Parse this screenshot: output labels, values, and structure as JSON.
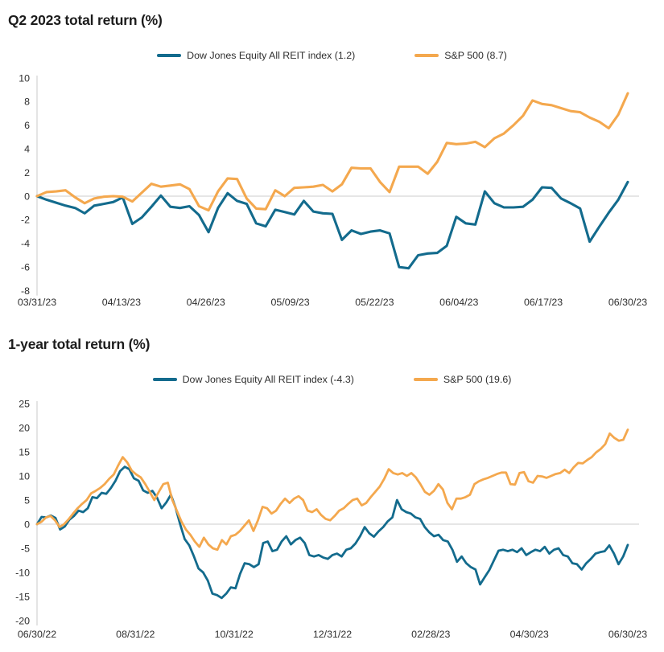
{
  "page": {
    "background": "#ffffff"
  },
  "colors": {
    "reit_line": "#136b8d",
    "sp500_line": "#f4a84e",
    "axis_line": "#c9c9c9",
    "zero_line": "#cccccc",
    "title_text": "#1c1c1c",
    "tick_text": "#2e2e2e"
  },
  "chart_data": [
    {
      "type": "line",
      "title": "Q2 2023 total return (%)",
      "xlabel": "",
      "ylabel": "",
      "legend_position": "top center",
      "grid": "zero line only",
      "y_axis": {
        "min": -8,
        "max": 10,
        "step": 2
      },
      "x_tick_labels": [
        "03/31/23",
        "04/13/23",
        "04/26/23",
        "05/09/23",
        "05/22/23",
        "06/04/23",
        "06/17/23",
        "06/30/23"
      ],
      "series": [
        {
          "name": "Dow Jones Equity All REIT index (1.2)",
          "color_key": "reit_line",
          "final_value": 1.2,
          "values": [
            0,
            -0.3,
            -0.55,
            -0.8,
            -1.0,
            -1.45,
            -0.8,
            -0.65,
            -0.5,
            -0.1,
            -2.35,
            -1.8,
            -0.9,
            0.05,
            -0.9,
            -1.0,
            -0.85,
            -1.6,
            -3.05,
            -1.0,
            0.25,
            -0.4,
            -0.65,
            -2.3,
            -2.55,
            -1.15,
            -1.35,
            -1.55,
            -0.4,
            -1.3,
            -1.45,
            -1.5,
            -3.7,
            -2.9,
            -3.2,
            -3.0,
            -2.9,
            -3.15,
            -6.0,
            -6.1,
            -5.0,
            -4.85,
            -4.8,
            -4.2,
            -1.75,
            -2.3,
            -2.4,
            0.4,
            -0.6,
            -0.95,
            -0.95,
            -0.9,
            -0.3,
            0.75,
            0.7,
            -0.2,
            -0.6,
            -1.05,
            -3.85,
            -2.6,
            -1.4,
            -0.3,
            1.2
          ]
        },
        {
          "name": "S&P 500 (8.7)",
          "color_key": "sp500_line",
          "final_value": 8.7,
          "values": [
            0,
            0.35,
            0.4,
            0.5,
            -0.1,
            -0.6,
            -0.2,
            -0.05,
            0,
            -0.05,
            -0.45,
            0.3,
            1.05,
            0.8,
            0.9,
            1.0,
            0.6,
            -0.85,
            -1.2,
            0.4,
            1.5,
            1.45,
            -0.2,
            -1.05,
            -1.1,
            0.5,
            0.0,
            0.7,
            0.75,
            0.8,
            0.95,
            0.4,
            1.0,
            2.4,
            2.35,
            2.35,
            1.2,
            0.35,
            2.5,
            2.5,
            2.5,
            1.9,
            2.9,
            4.5,
            4.4,
            4.45,
            4.6,
            4.15,
            4.9,
            5.3,
            6.0,
            6.8,
            8.1,
            7.8,
            7.7,
            7.45,
            7.2,
            7.1,
            6.65,
            6.3,
            5.75,
            6.9,
            8.7
          ]
        }
      ]
    },
    {
      "type": "line",
      "title": "1-year total return (%)",
      "xlabel": "",
      "ylabel": "",
      "legend_position": "top center",
      "grid": "zero line only",
      "y_axis": {
        "min": -20,
        "max": 25,
        "step": 5
      },
      "x_tick_labels": [
        "06/30/22",
        "08/31/22",
        "10/31/22",
        "12/31/22",
        "02/28/23",
        "04/30/23",
        "06/30/23"
      ],
      "series": [
        {
          "name": "Dow Jones Equity All REIT index (-4.3)",
          "color_key": "reit_line",
          "final_value": -4.3,
          "values": [
            0,
            1.5,
            1.4,
            1.8,
            1.3,
            -1.1,
            -0.5,
            0.9,
            1.7,
            2.8,
            2.5,
            3.3,
            5.6,
            5.4,
            6.5,
            6.3,
            7.5,
            9.0,
            11.0,
            11.9,
            11.4,
            9.5,
            9.0,
            7.0,
            6.5,
            6.9,
            5.5,
            3.3,
            4.5,
            6.1,
            3.5,
            0.0,
            -3.1,
            -4.4,
            -6.7,
            -9.2,
            -10.0,
            -11.7,
            -14.4,
            -14.7,
            -15.3,
            -14.4,
            -13.1,
            -13.3,
            -10.3,
            -8.1,
            -8.3,
            -8.9,
            -8.3,
            -3.9,
            -3.6,
            -5.6,
            -5.3,
            -3.6,
            -2.5,
            -4.2,
            -3.3,
            -2.8,
            -3.9,
            -6.4,
            -6.7,
            -6.4,
            -6.9,
            -7.2,
            -6.4,
            -6.1,
            -6.7,
            -5.3,
            -5.0,
            -4.0,
            -2.5,
            -0.6,
            -1.9,
            -2.6,
            -1.5,
            -0.6,
            0.6,
            1.4,
            5.0,
            3.1,
            2.5,
            2.2,
            1.4,
            1.1,
            -0.6,
            -1.7,
            -2.5,
            -2.2,
            -3.3,
            -3.6,
            -5.3,
            -7.8,
            -6.7,
            -8.1,
            -8.9,
            -9.4,
            -12.5,
            -11.0,
            -9.5,
            -7.5,
            -5.5,
            -5.3,
            -5.6,
            -5.3,
            -5.8,
            -5.0,
            -6.4,
            -5.8,
            -5.3,
            -5.6,
            -4.7,
            -6.1,
            -5.3,
            -5.0,
            -6.4,
            -6.7,
            -8.1,
            -8.3,
            -9.4,
            -8.1,
            -7.2,
            -6.1,
            -5.8,
            -5.6,
            -4.4,
            -6.1,
            -8.3,
            -6.7,
            -4.3
          ]
        },
        {
          "name": "S&P 500 (19.6)",
          "color_key": "sp500_line",
          "final_value": 19.6,
          "values": [
            0,
            0.5,
            1.4,
            1.7,
            0.8,
            -0.6,
            0.0,
            1.0,
            2.2,
            3.3,
            4.2,
            5.0,
            6.4,
            6.9,
            7.5,
            8.3,
            9.4,
            10.3,
            12.2,
            13.9,
            12.8,
            11.1,
            10.3,
            9.7,
            8.3,
            6.7,
            5.0,
            6.7,
            8.3,
            8.6,
            5.0,
            2.8,
            0.6,
            -1.1,
            -2.2,
            -3.6,
            -4.7,
            -2.8,
            -4.2,
            -5.0,
            -5.3,
            -3.3,
            -4.2,
            -2.5,
            -2.2,
            -1.4,
            -0.3,
            0.8,
            -1.4,
            0.8,
            3.6,
            3.3,
            2.2,
            2.8,
            4.2,
            5.3,
            4.4,
            5.3,
            5.8,
            5.0,
            2.8,
            2.5,
            3.1,
            1.9,
            1.1,
            0.8,
            1.7,
            2.8,
            3.3,
            4.2,
            5.0,
            5.3,
            3.9,
            4.4,
            5.6,
            6.7,
            7.8,
            9.4,
            11.4,
            10.6,
            10.3,
            10.6,
            10.0,
            10.6,
            9.7,
            8.3,
            6.7,
            6.1,
            6.9,
            8.3,
            7.2,
            4.4,
            3.1,
            5.3,
            5.3,
            5.6,
            6.1,
            8.3,
            8.9,
            9.3,
            9.6,
            10.0,
            10.4,
            10.7,
            10.7,
            8.3,
            8.2,
            10.6,
            10.8,
            8.9,
            8.6,
            10.0,
            9.9,
            9.6,
            10.0,
            10.4,
            10.6,
            11.3,
            10.6,
            11.8,
            12.7,
            12.6,
            13.3,
            13.9,
            14.9,
            15.6,
            16.6,
            18.8,
            17.9,
            17.3,
            17.5,
            19.6
          ]
        }
      ]
    }
  ]
}
